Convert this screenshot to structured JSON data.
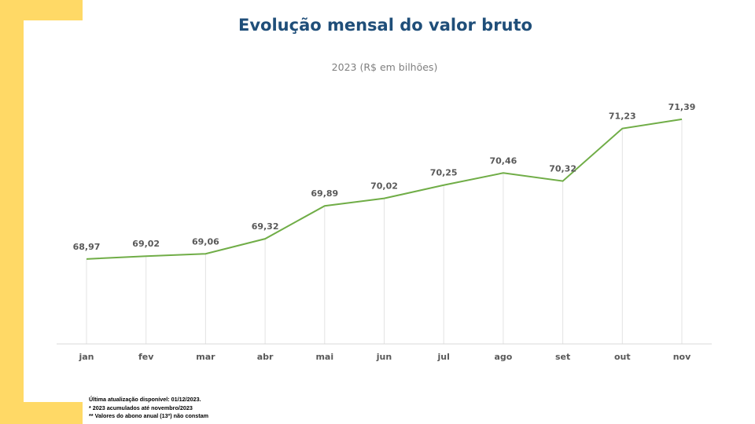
{
  "chart_data": {
    "type": "line",
    "title": "Evolução mensal do valor bruto",
    "subtitle": "2023 (R$ em bilhões)",
    "categories": [
      "jan",
      "fev",
      "mar",
      "abr",
      "mai",
      "jun",
      "jul",
      "ago",
      "set",
      "out",
      "nov"
    ],
    "series": [
      {
        "values": [
          68.97,
          69.02,
          69.06,
          69.32,
          69.89,
          70.02,
          70.25,
          70.46,
          70.32,
          71.23,
          71.39
        ]
      }
    ],
    "data_labels": [
      "68,97",
      "69,02",
      "69,06",
      "69,32",
      "69,89",
      "70,02",
      "70,25",
      "70,46",
      "70,32",
      "71,23",
      "71,39"
    ],
    "ylim": [
      67.5,
      71.6
    ],
    "grid": "vertical drop lines",
    "line_color": "#70AD47"
  },
  "notes": [
    "Última atualização disponível:  01/12/2023.",
    "* 2023 acumulados até novembro/2023",
    "** Valores do abono anual (13º) não constam"
  ]
}
